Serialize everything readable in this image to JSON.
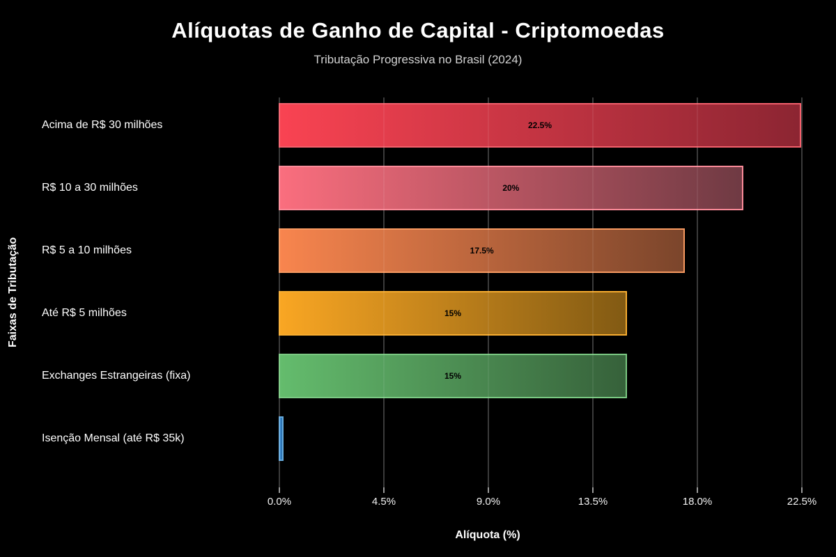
{
  "header": {
    "title": "Alíquotas de Ganho de Capital - Criptomoedas",
    "subtitle": "Tributação Progressiva no Brasil (2024)"
  },
  "axes": {
    "xlabel": "Alíquota (%)",
    "ylabel": "Faixas de Tributação"
  },
  "chart_data": {
    "type": "bar",
    "orientation": "horizontal",
    "title": "Alíquotas de Ganho de Capital - Criptomoedas",
    "subtitle": "Tributação Progressiva no Brasil (2024)",
    "xlabel": "Alíquota (%)",
    "ylabel": "Faixas de Tributação",
    "xlim": [
      0,
      23.55
    ],
    "grid": "vertical",
    "background": "#000000",
    "x_tick_values": [
      0,
      4.5,
      9,
      13.5,
      18,
      22.5
    ],
    "x_tick_labels": [
      "0.0%",
      "4.5%",
      "9.0%",
      "13.5%",
      "18.0%",
      "22.5%"
    ],
    "categories": [
      "Acima de R$ 30 milhões",
      "R$ 10 a 30 milhões",
      "R$ 5 a 10 milhões",
      "Até R$ 5 milhões",
      "Exchanges Estrangeiras (fixa)",
      "Isenção Mensal (até R$ 35k)"
    ],
    "values": [
      22.5,
      20,
      17.5,
      15,
      15,
      0.2
    ],
    "bar_labels": [
      "22.5%",
      "20%",
      "17.5%",
      "15%",
      "15%",
      ""
    ],
    "bar_label_color": "#000000",
    "bar_colors": [
      {
        "start": "#f94352",
        "end": "#8c2532",
        "border": "#f3606c"
      },
      {
        "start": "#fa6e7e",
        "end": "#6f3a43",
        "border": "#fb8b99"
      },
      {
        "start": "#f8854e",
        "end": "#7b452b",
        "border": "#f89a61"
      },
      {
        "start": "#f9a623",
        "end": "#825a13",
        "border": "#f8ad30"
      },
      {
        "start": "#64bc6d",
        "end": "#36613a",
        "border": "#7bca83"
      },
      {
        "start": "#3b8ed4",
        "end": "#2a6aa6",
        "border": "#66abde"
      }
    ]
  }
}
